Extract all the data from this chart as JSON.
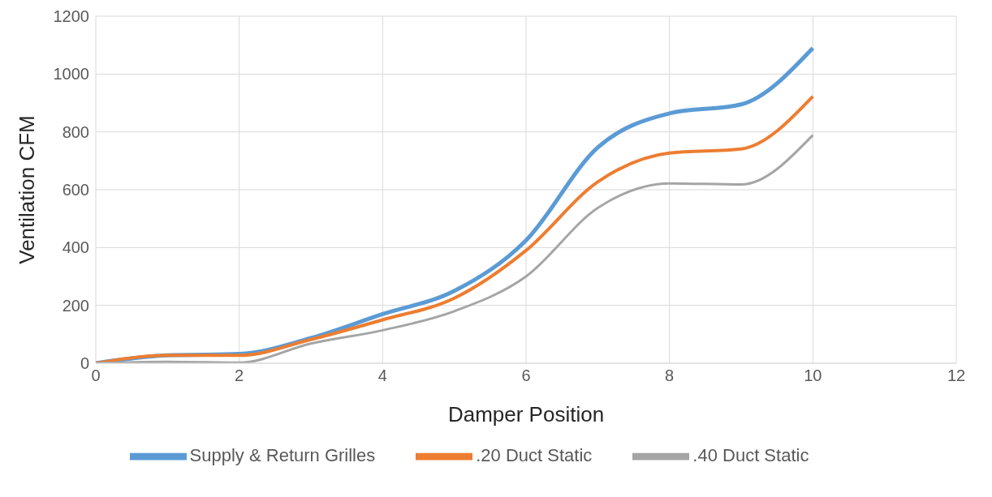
{
  "chart_data": {
    "type": "line",
    "xlabel": "Damper Position",
    "ylabel": "Ventilation CFM",
    "x": [
      0,
      1,
      2,
      3,
      4,
      5,
      6,
      7,
      8,
      9,
      10
    ],
    "series": [
      {
        "name": "Supply & Return Grilles",
        "color": "#5b9bd5",
        "values": [
          0,
          27,
          32,
          87,
          170,
          250,
          425,
          746,
          864,
          895,
          1090
        ]
      },
      {
        "name": ".20 Duct Static",
        "color": "#ed7d31",
        "values": [
          0,
          27,
          27,
          82,
          150,
          225,
          390,
          627,
          727,
          741,
          923
        ]
      },
      {
        "name": ".40 Duct Static",
        "color": "#a5a5a5",
        "values": [
          0,
          5,
          2,
          68,
          114,
          180,
          300,
          537,
          622,
          618,
          789
        ]
      }
    ],
    "xlim": [
      0,
      12
    ],
    "xticks": [
      0,
      2,
      4,
      6,
      8,
      10,
      12
    ],
    "ylim": [
      0,
      1200
    ],
    "yticks": [
      0,
      200,
      400,
      600,
      800,
      1000,
      1200
    ],
    "grid": true,
    "legend": "bottom",
    "marker": "none",
    "line_style": "solid"
  }
}
